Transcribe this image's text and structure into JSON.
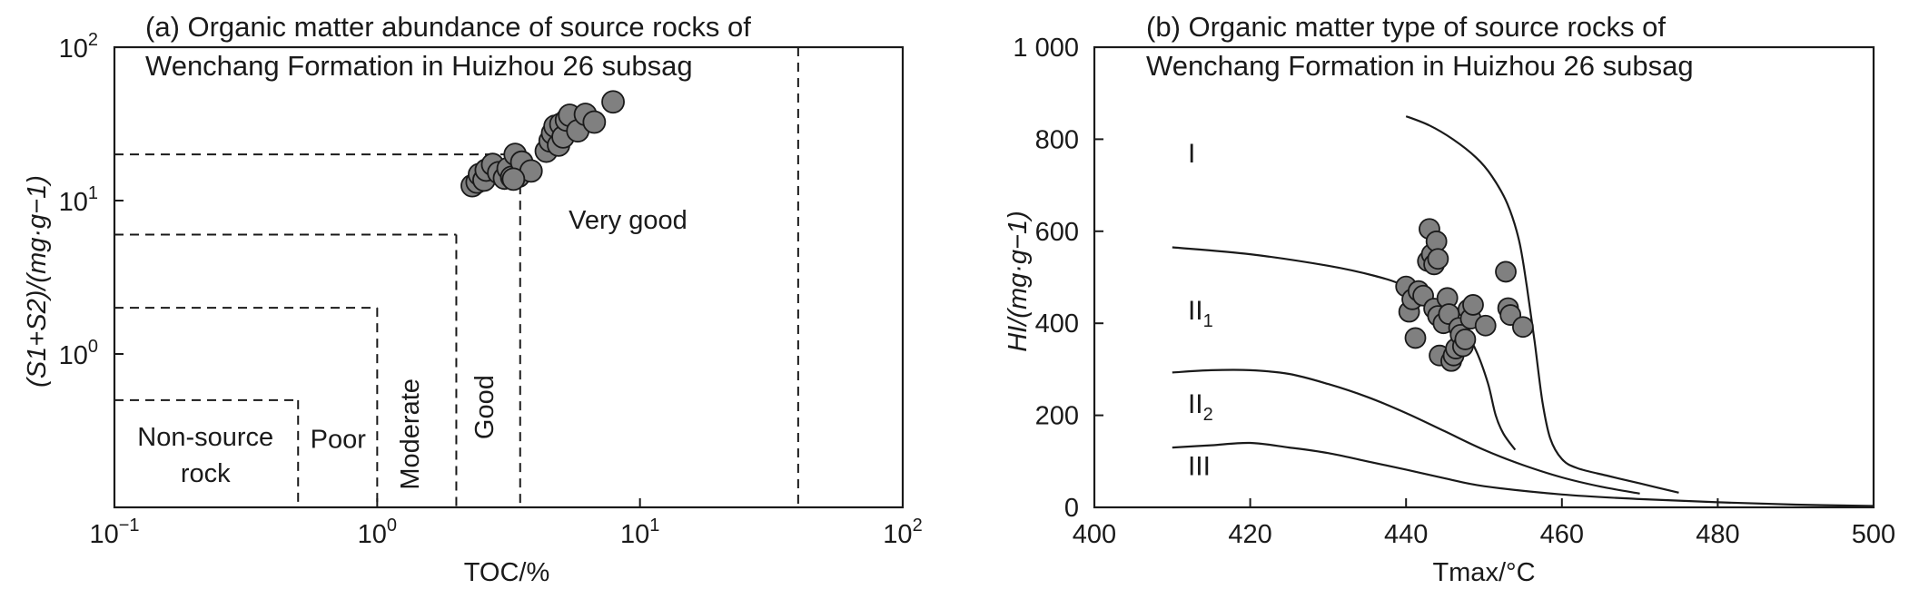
{
  "chart_data": [
    {
      "type": "scatter",
      "panel_label": "(a)",
      "title_lines": [
        "(a) Organic matter abundance of source rocks of",
        "Wenchang Formation in Huizhou 26 subsag"
      ],
      "xlabel": "TOC/%",
      "ylabel": "(S1+S2)/(mg·g−1)",
      "x_scale": "log",
      "y_scale": "log",
      "xlim": [
        0.1,
        100
      ],
      "ylim": [
        0.1,
        100
      ],
      "x_ticks": [
        {
          "base": "10",
          "exp": "−1",
          "value": 0.1
        },
        {
          "base": "10",
          "exp": "0",
          "value": 1
        },
        {
          "base": "10",
          "exp": "1",
          "value": 10
        },
        {
          "base": "10",
          "exp": "2",
          "value": 100
        }
      ],
      "y_ticks": [
        {
          "base": "10",
          "exp": "0",
          "value": 1
        },
        {
          "base": "10",
          "exp": "1",
          "value": 10
        },
        {
          "base": "10",
          "exp": "2",
          "value": 100
        }
      ],
      "zones": [
        {
          "label_lines": [
            "Non-source",
            "rock"
          ],
          "toc_max": 0.5,
          "s1s2_max": 0.5
        },
        {
          "label_lines": [
            "Poor"
          ],
          "toc_min": 0.5,
          "toc_max": 1.0,
          "s1s2_max": 2
        },
        {
          "label_lines": [
            "Moderate"
          ],
          "toc_min": 1.0,
          "toc_max": 2.0,
          "s1s2_max": 6
        },
        {
          "label_lines": [
            "Good"
          ],
          "toc_min": 2.0,
          "toc_max": 3.5,
          "s1s2_max": 20
        },
        {
          "label_lines": [
            "Very good"
          ],
          "toc_min": 3.5,
          "s1s2_min": 20
        }
      ],
      "boundary_x": [
        0.5,
        1.0,
        2.0,
        3.5,
        40
      ],
      "points": [
        {
          "x": 2.3,
          "y": 12.5
        },
        {
          "x": 2.4,
          "y": 13.2
        },
        {
          "x": 2.45,
          "y": 14.8
        },
        {
          "x": 2.55,
          "y": 13.6
        },
        {
          "x": 2.6,
          "y": 15.8
        },
        {
          "x": 2.75,
          "y": 17.2
        },
        {
          "x": 2.9,
          "y": 15.2
        },
        {
          "x": 3.05,
          "y": 14.0
        },
        {
          "x": 3.15,
          "y": 16.2
        },
        {
          "x": 3.25,
          "y": 14.2
        },
        {
          "x": 3.35,
          "y": 20.0
        },
        {
          "x": 3.45,
          "y": 14.4
        },
        {
          "x": 3.55,
          "y": 17.8
        },
        {
          "x": 3.85,
          "y": 15.6
        },
        {
          "x": 3.3,
          "y": 13.8
        },
        {
          "x": 4.4,
          "y": 21.0
        },
        {
          "x": 4.55,
          "y": 24.5
        },
        {
          "x": 4.65,
          "y": 27.5
        },
        {
          "x": 4.75,
          "y": 30.5
        },
        {
          "x": 4.9,
          "y": 23.0
        },
        {
          "x": 5.0,
          "y": 31.5
        },
        {
          "x": 5.1,
          "y": 26.0
        },
        {
          "x": 5.25,
          "y": 33.5
        },
        {
          "x": 5.4,
          "y": 36.0
        },
        {
          "x": 5.8,
          "y": 28.5
        },
        {
          "x": 6.2,
          "y": 36.5
        },
        {
          "x": 6.7,
          "y": 32.5
        },
        {
          "x": 7.9,
          "y": 44.0
        }
      ]
    },
    {
      "type": "scatter",
      "panel_label": "(b)",
      "title_lines": [
        "(b) Organic matter type of source rocks of",
        "Wenchang Formation in Huizhou 26 subsag"
      ],
      "xlabel": "Tmax/°C",
      "ylabel": "HI/(mg·g−1)",
      "xlim": [
        400,
        500
      ],
      "ylim": [
        0,
        1000
      ],
      "x_ticks": [
        "400",
        "420",
        "440",
        "460",
        "480",
        "500"
      ],
      "y_ticks": [
        "0",
        "200",
        "400",
        "600",
        "800",
        "1 000"
      ],
      "x_tick_values": [
        400,
        420,
        440,
        460,
        480,
        500
      ],
      "y_tick_values": [
        0,
        200,
        400,
        600,
        800,
        1000
      ],
      "kerogen_labels": [
        {
          "base": "I",
          "sub": "",
          "x": 412,
          "y": 750
        },
        {
          "base": "II",
          "sub": "1",
          "x": 412,
          "y": 408
        },
        {
          "base": "II",
          "sub": "2",
          "x": 412,
          "y": 205
        },
        {
          "base": "III",
          "sub": "",
          "x": 412,
          "y": 70
        }
      ],
      "boundaries": [
        {
          "name": "I/II1",
          "points": [
            [
              440,
              850
            ],
            [
              443,
              830
            ],
            [
              446,
              800
            ],
            [
              449,
              760
            ],
            [
              451,
              720
            ],
            [
              453,
              660
            ],
            [
              454.5,
              580
            ],
            [
              455.5,
              480
            ],
            [
              456.5,
              360
            ],
            [
              457.5,
              230
            ],
            [
              458.5,
              150
            ],
            [
              460,
              105
            ],
            [
              462,
              85
            ],
            [
              466,
              68
            ],
            [
              470,
              52
            ],
            [
              475,
              32
            ]
          ]
        },
        {
          "name": "II1/II2",
          "points": [
            [
              410,
              565
            ],
            [
              420,
              550
            ],
            [
              430,
              525
            ],
            [
              436,
              503
            ],
            [
              440,
              480
            ],
            [
              444,
              440
            ],
            [
              447,
              400
            ],
            [
              449,
              340
            ],
            [
              450.5,
              270
            ],
            [
              451.5,
              200
            ],
            [
              452.5,
              160
            ],
            [
              454,
              125
            ]
          ]
        },
        {
          "name": "II2/III",
          "points": [
            [
              410,
              293
            ],
            [
              415,
              298
            ],
            [
              420,
              298
            ],
            [
              425,
              290
            ],
            [
              430,
              268
            ],
            [
              435,
              240
            ],
            [
              440,
              205
            ],
            [
              445,
              165
            ],
            [
              450,
              125
            ],
            [
              455,
              92
            ],
            [
              460,
              65
            ],
            [
              465,
              45
            ],
            [
              470,
              30
            ]
          ]
        },
        {
          "name": "III lower",
          "points": [
            [
              410,
              130
            ],
            [
              415,
              135
            ],
            [
              420,
              140
            ],
            [
              425,
              130
            ],
            [
              430,
              118
            ],
            [
              435,
              100
            ],
            [
              440,
              82
            ],
            [
              445,
              63
            ],
            [
              450,
              46
            ],
            [
              460,
              28
            ],
            [
              470,
              18
            ],
            [
              480,
              11
            ],
            [
              490,
              6
            ],
            [
              500,
              3
            ]
          ]
        }
      ],
      "points": [
        {
          "x": 440.0,
          "y": 480
        },
        {
          "x": 440.4,
          "y": 425
        },
        {
          "x": 440.8,
          "y": 452
        },
        {
          "x": 441.2,
          "y": 368
        },
        {
          "x": 441.6,
          "y": 470
        },
        {
          "x": 442.2,
          "y": 460
        },
        {
          "x": 442.8,
          "y": 535
        },
        {
          "x": 443.0,
          "y": 605
        },
        {
          "x": 443.3,
          "y": 550
        },
        {
          "x": 443.6,
          "y": 528
        },
        {
          "x": 443.9,
          "y": 578
        },
        {
          "x": 444.1,
          "y": 540
        },
        {
          "x": 443.6,
          "y": 432
        },
        {
          "x": 444.1,
          "y": 416
        },
        {
          "x": 444.3,
          "y": 330
        },
        {
          "x": 444.8,
          "y": 400
        },
        {
          "x": 445.3,
          "y": 455
        },
        {
          "x": 445.5,
          "y": 420
        },
        {
          "x": 445.8,
          "y": 318
        },
        {
          "x": 446.1,
          "y": 330
        },
        {
          "x": 446.4,
          "y": 345
        },
        {
          "x": 446.8,
          "y": 390
        },
        {
          "x": 447.0,
          "y": 375
        },
        {
          "x": 447.3,
          "y": 350
        },
        {
          "x": 447.6,
          "y": 365
        },
        {
          "x": 448.0,
          "y": 430
        },
        {
          "x": 448.3,
          "y": 410
        },
        {
          "x": 448.6,
          "y": 440
        },
        {
          "x": 450.2,
          "y": 395
        },
        {
          "x": 452.8,
          "y": 512
        },
        {
          "x": 453.1,
          "y": 433
        },
        {
          "x": 453.4,
          "y": 418
        },
        {
          "x": 455.0,
          "y": 392
        }
      ]
    }
  ]
}
